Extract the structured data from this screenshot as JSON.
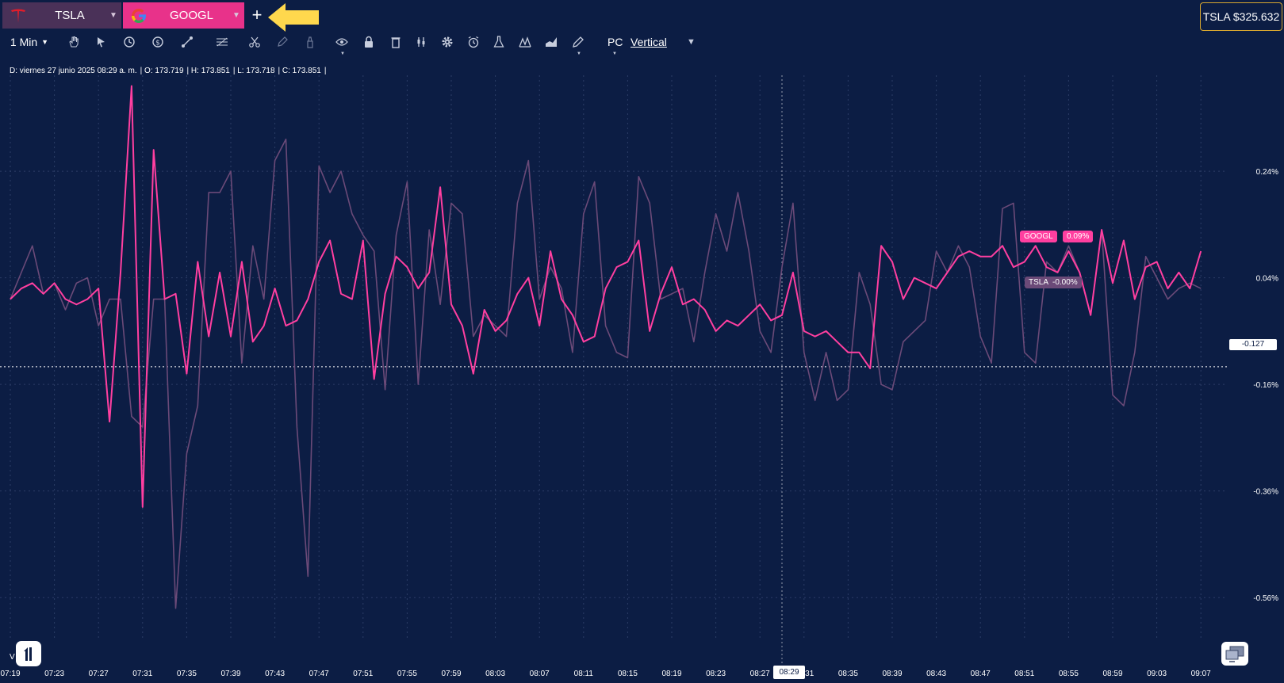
{
  "tabs": [
    {
      "label": "TSLA",
      "icon": "tesla-logo-icon"
    },
    {
      "label": "GOOGL",
      "icon": "google-logo-icon"
    }
  ],
  "add_tab_label": "+",
  "price_box": "TSLA $325.632",
  "toolbar": {
    "interval": "1 Min",
    "mode": "PC",
    "orientation": "Vertical",
    "icons": [
      "hand-icon",
      "pointer-icon",
      "clock-icon",
      "dollar-icon",
      "line-tool-icon",
      "fib-tool-icon",
      "scissors-icon",
      "pen-icon",
      "brush-icon",
      "eye-icon",
      "lock-icon",
      "trash-icon",
      "indicators-icon",
      "gear-icon",
      "alarm-icon",
      "flask-icon",
      "patterns-icon",
      "area-chart-icon",
      "pencil-icon"
    ]
  },
  "ohlc": {
    "date": "D: viernes 27 junio 2025 08:29 a. m.",
    "open": "O: 173.719",
    "high": "H: 173.851",
    "low": "L: 173.718",
    "close": "C: 173.851"
  },
  "version": "V  2010.0",
  "cursor": {
    "y_value": "-0.127",
    "x_time": "08:29"
  },
  "badges": {
    "googl_name": "GOOGL",
    "googl_value": "0.09%",
    "tsla_name": "TSLA",
    "tsla_value": "-0.00%"
  },
  "colors": {
    "background": "#0c1d44",
    "googl": "#ff3fa0",
    "tsla": "#6b4a78",
    "accent": "#ffd84d"
  },
  "chart_data": {
    "type": "line",
    "y_unit": "%",
    "ylim": [
      -0.64,
      0.42
    ],
    "y_ticks": [
      {
        "label": "0.24%",
        "value": 0.24
      },
      {
        "label": "0.04%",
        "value": 0.04
      },
      {
        "label": "-0.16%",
        "value": -0.16
      },
      {
        "label": "-0.36%",
        "value": -0.36
      },
      {
        "label": "-0.56%",
        "value": -0.56
      }
    ],
    "x_ticks": [
      "07:19",
      "07:23",
      "07:27",
      "07:31",
      "07:35",
      "07:39",
      "07:43",
      "07:47",
      "07:51",
      "07:55",
      "07:59",
      "08:03",
      "08:07",
      "08:11",
      "08:15",
      "08:19",
      "08:23",
      "08:27",
      "08:31",
      "08:35",
      "08:39",
      "08:43",
      "08:47",
      "08:51",
      "08:55",
      "08:59",
      "09:03",
      "09:07"
    ],
    "x_start_min": 0,
    "x_step_min": 4,
    "grid": true,
    "series": [
      {
        "name": "GOOGL",
        "values": [
          0.0,
          0.02,
          0.03,
          0.01,
          0.03,
          0.0,
          -0.01,
          0.0,
          0.02,
          -0.23,
          0.05,
          0.4,
          -0.39,
          0.28,
          0.0,
          0.01,
          -0.14,
          0.07,
          -0.07,
          0.05,
          -0.07,
          0.07,
          -0.08,
          -0.05,
          0.02,
          -0.05,
          -0.04,
          0.0,
          0.07,
          0.11,
          0.01,
          0.0,
          0.11,
          -0.15,
          0.01,
          0.08,
          0.06,
          0.02,
          0.05,
          0.21,
          -0.01,
          -0.05,
          -0.14,
          -0.02,
          -0.06,
          -0.04,
          0.01,
          0.04,
          -0.05,
          0.09,
          0.0,
          -0.03,
          -0.08,
          -0.07,
          0.02,
          0.06,
          0.07,
          0.11,
          -0.06,
          0.01,
          0.06,
          -0.01,
          0.0,
          -0.02,
          -0.06,
          -0.04,
          -0.05,
          -0.03,
          -0.01,
          -0.04,
          -0.03,
          0.05,
          -0.06,
          -0.07,
          -0.06,
          -0.08,
          -0.1,
          -0.1,
          -0.13,
          0.1,
          0.07,
          0.0,
          0.04,
          0.03,
          0.02,
          0.05,
          0.08,
          0.09,
          0.08,
          0.08,
          0.1,
          0.06,
          0.07,
          0.1,
          0.06,
          0.05,
          0.09,
          0.05,
          -0.03,
          0.13,
          0.03,
          0.11,
          0.0,
          0.06,
          0.07,
          0.02,
          0.05,
          0.02,
          0.09
        ]
      },
      {
        "name": "TSLA",
        "values": [
          0.0,
          0.05,
          0.1,
          0.01,
          0.03,
          -0.02,
          0.03,
          0.04,
          -0.05,
          0.0,
          0.0,
          -0.22,
          -0.24,
          0.0,
          0.0,
          -0.58,
          -0.29,
          -0.2,
          0.2,
          0.2,
          0.24,
          -0.12,
          0.1,
          0.0,
          0.26,
          0.3,
          -0.24,
          -0.52,
          0.25,
          0.2,
          0.24,
          0.16,
          0.12,
          0.09,
          -0.17,
          0.12,
          0.22,
          -0.16,
          0.13,
          -0.01,
          0.18,
          0.16,
          -0.07,
          -0.03,
          -0.05,
          -0.07,
          0.18,
          0.26,
          0.0,
          0.06,
          0.02,
          -0.1,
          0.16,
          0.22,
          -0.05,
          -0.1,
          -0.11,
          0.23,
          0.18,
          0.0,
          0.01,
          0.02,
          -0.08,
          0.05,
          0.16,
          0.09,
          0.2,
          0.09,
          -0.06,
          -0.1,
          0.06,
          0.18,
          -0.1,
          -0.19,
          -0.1,
          -0.19,
          -0.17,
          0.05,
          -0.01,
          -0.16,
          -0.17,
          -0.08,
          -0.06,
          -0.04,
          0.09,
          0.05,
          0.1,
          0.06,
          -0.07,
          -0.12,
          0.17,
          0.18,
          -0.1,
          -0.12,
          0.07,
          0.05,
          0.1,
          0.05,
          -0.03,
          0.13,
          -0.18,
          -0.2,
          -0.1,
          0.08,
          0.04,
          0.0,
          0.02,
          0.03,
          0.02
        ]
      }
    ]
  }
}
